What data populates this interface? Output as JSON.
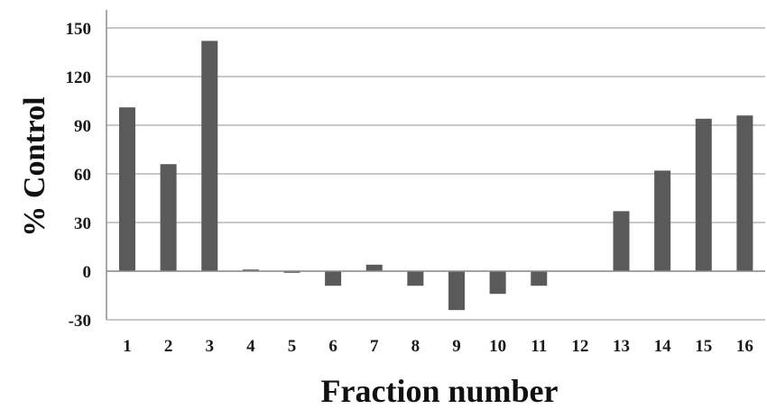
{
  "chart_data": {
    "type": "bar",
    "xlabel": "Fraction number",
    "ylabel": "% Control",
    "categories": [
      "1",
      "2",
      "3",
      "4",
      "5",
      "6",
      "7",
      "8",
      "9",
      "10",
      "11",
      "12",
      "13",
      "14",
      "15",
      "16"
    ],
    "values": [
      101,
      66,
      142,
      1,
      -1,
      -9,
      4,
      -9,
      -24,
      -14,
      -9,
      0,
      37,
      62,
      94,
      96
    ],
    "ylim": [
      -30,
      150
    ],
    "yticks": [
      -30,
      0,
      30,
      60,
      90,
      120,
      150
    ],
    "grid": true,
    "colors": {
      "bar": "#5a5a5a",
      "grid": "#a6a6a6",
      "axis": "#8c8c8c"
    }
  }
}
